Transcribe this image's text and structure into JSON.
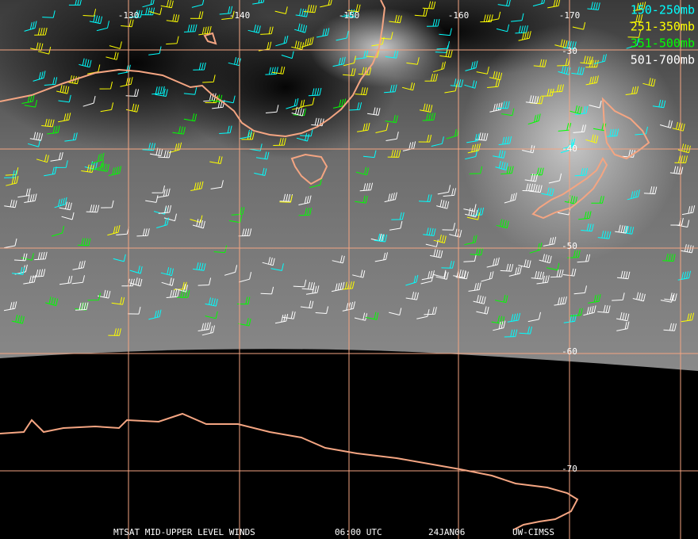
{
  "longitude_labels": [
    "-130",
    "-140",
    "-150",
    "-160",
    "-170"
  ],
  "latitude_labels": [
    "-30",
    "-40",
    "-50",
    "-60",
    "-70"
  ],
  "legend": [
    {
      "label": "150-250mb",
      "color": "#00ffff"
    },
    {
      "label": "251-350mb",
      "color": "#ffff00"
    },
    {
      "label": "351-500mb",
      "color": "#00ff00"
    },
    {
      "label": "501-700mb",
      "color": "#ffffff"
    }
  ],
  "footer": {
    "product": "MTSAT MID-UPPER LEVEL WINDS",
    "time": "06:00 UTC",
    "date": "24JAN06",
    "source": "UW-CIMSS"
  }
}
